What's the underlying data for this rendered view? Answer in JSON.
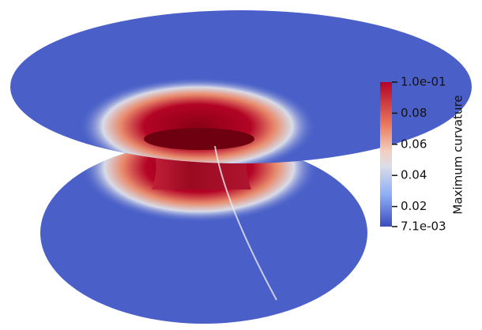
{
  "colorbar": {
    "title": "Maximum curvature",
    "range": [
      0.0071,
      0.1
    ],
    "ticks": [
      {
        "value": 0.1,
        "label": "1.0e-01"
      },
      0.08,
      0.06,
      0.04,
      0.02,
      {
        "value": 0.0071,
        "label": "7.1e-03"
      }
    ]
  }
}
